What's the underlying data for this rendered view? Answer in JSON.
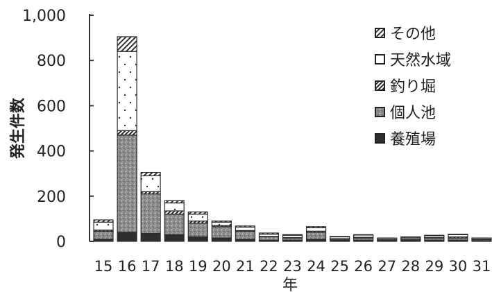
{
  "chart_data": {
    "type": "bar",
    "stacked": true,
    "xlabel": "年",
    "ylabel": "発生件数",
    "ylim": [
      0,
      1000
    ],
    "yticks": [
      0,
      200,
      400,
      600,
      800,
      1000
    ],
    "ytick_labels": [
      "0",
      "200",
      "400",
      "600",
      "800",
      "1,000"
    ],
    "categories": [
      "15",
      "16",
      "17",
      "18",
      "19",
      "20",
      "21",
      "22",
      "23",
      "24",
      "25",
      "26",
      "27",
      "28",
      "29",
      "30",
      "31"
    ],
    "legend_position": "top-right",
    "series": [
      {
        "name": "養殖場",
        "color": "#2e2e2e",
        "pattern": "solid",
        "values": [
          10,
          40,
          35,
          30,
          20,
          15,
          10,
          5,
          5,
          10,
          5,
          5,
          5,
          5,
          5,
          5,
          3
        ]
      },
      {
        "name": "個人池",
        "color": "#8c8c8c",
        "pattern": "stipple",
        "values": [
          35,
          430,
          175,
          90,
          60,
          50,
          35,
          15,
          10,
          30,
          5,
          10,
          5,
          5,
          10,
          10,
          5
        ]
      },
      {
        "name": "釣り堀",
        "color": "#3a3a3a",
        "pattern": "diagonal",
        "values": [
          5,
          20,
          10,
          15,
          10,
          5,
          3,
          2,
          2,
          5,
          2,
          3,
          0,
          2,
          2,
          5,
          2
        ]
      },
      {
        "name": "天然水域",
        "color": "#ffffff",
        "pattern": "dots",
        "values": [
          35,
          350,
          70,
          35,
          30,
          15,
          15,
          10,
          10,
          15,
          8,
          10,
          5,
          6,
          8,
          10,
          5
        ]
      },
      {
        "name": "その他",
        "color": "#555555",
        "pattern": "crosshatch",
        "values": [
          10,
          65,
          15,
          10,
          10,
          5,
          5,
          5,
          3,
          5,
          2,
          2,
          0,
          2,
          2,
          2,
          0
        ]
      }
    ]
  }
}
